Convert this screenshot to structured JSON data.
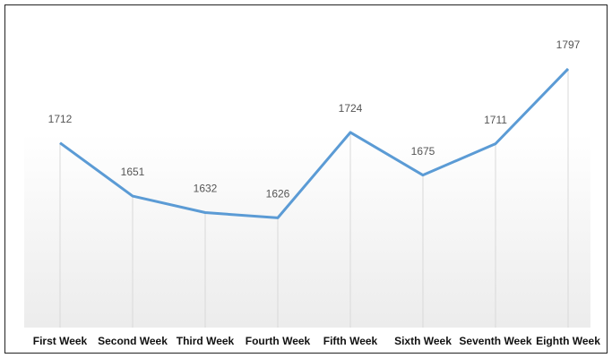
{
  "chart_data": {
    "type": "line",
    "categories": [
      "First Week",
      "Second Week",
      "Third Week",
      "Fourth Week",
      "Fifth Week",
      "Sixth Week",
      "Seventh Week",
      "Eighth Week"
    ],
    "values": [
      1712,
      1651,
      1632,
      1626,
      1724,
      1675,
      1711,
      1797
    ],
    "color": "#5b9bd5",
    "ylim": [
      1500,
      1800
    ]
  }
}
